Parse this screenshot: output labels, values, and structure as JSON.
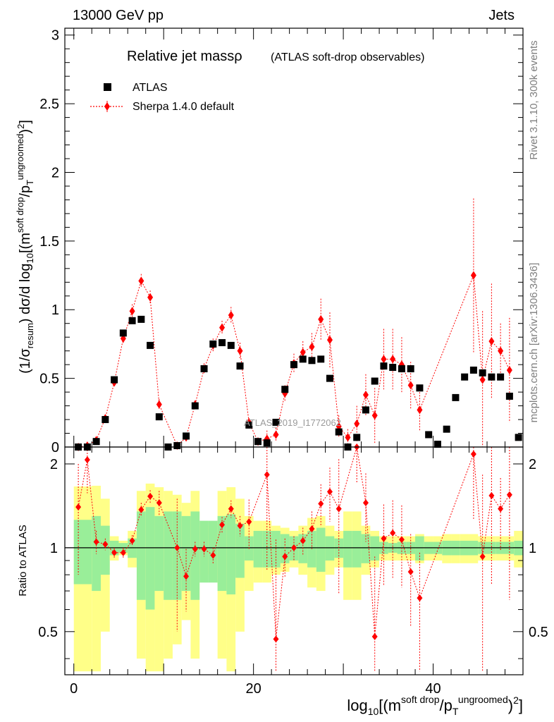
{
  "header": {
    "left": "13000 GeV pp",
    "right": "Jets"
  },
  "side_labels": {
    "rivet": "Rivet 3.1.10,  300k events",
    "mcplots": "mcplots.cern.ch [arXiv:1306.3436]"
  },
  "watermark": "ATLAS_2019_I1772062",
  "chart_data": [
    {
      "type": "scatter",
      "panel": "main",
      "title": "Relative jet massρ",
      "subtitle": "(ATLAS soft-drop observables)",
      "ylabel": "(1/σresum) dσ/d log10[(m soft drop / pT ungroomed)2]",
      "ylim": [
        0,
        3.05
      ],
      "xlim": [
        -1,
        50
      ],
      "yticks": [
        "0",
        "0.5",
        "1",
        "1.5",
        "2",
        "2.5",
        "3"
      ],
      "legend": {
        "position": "top-left",
        "entries": [
          "ATLAS",
          "Sherpa 1.4.0 default"
        ]
      },
      "colors": {
        "data": "#000000",
        "mc": "#ff0000"
      },
      "series": [
        {
          "name": "ATLAS",
          "x": [
            0.5,
            1.5,
            2.5,
            3.5,
            4.5,
            5.5,
            6.5,
            7.5,
            8.5,
            9.5,
            10.5,
            11.5,
            12.5,
            13.5,
            14.5,
            15.5,
            16.5,
            17.5,
            18.5,
            19.5,
            20.5,
            21.5,
            22.5,
            23.5,
            24.5,
            25.5,
            26.5,
            27.5,
            28.5,
            29.5,
            30.5,
            31.5,
            32.5,
            33.5,
            34.5,
            35.5,
            36.5,
            37.5,
            38.5,
            39.5,
            40.5,
            41.5,
            42.5,
            43.5,
            44.5,
            45.5,
            46.5,
            47.5,
            48.5,
            49.5
          ],
          "y": [
            0.0,
            0.0,
            0.04,
            0.2,
            0.49,
            0.83,
            0.92,
            0.93,
            0.74,
            0.22,
            0.0,
            0.01,
            0.08,
            0.3,
            0.57,
            0.75,
            0.76,
            0.74,
            0.59,
            0.16,
            0.04,
            0.03,
            0.18,
            0.42,
            0.6,
            0.64,
            0.63,
            0.64,
            0.5,
            0.11,
            0.0,
            0.07,
            0.27,
            0.48,
            0.59,
            0.58,
            0.57,
            0.57,
            0.43,
            0.09,
            0.02,
            0.13,
            0.36,
            0.51,
            0.56,
            0.54,
            0.51,
            0.51,
            0.37,
            0.07
          ]
        },
        {
          "name": "Sherpa 1.4.0 default",
          "x": [
            0.5,
            1.5,
            2.5,
            3.5,
            4.5,
            5.5,
            6.5,
            7.5,
            8.5,
            9.5,
            11.5,
            12.5,
            13.5,
            14.5,
            15.5,
            16.5,
            17.5,
            18.5,
            19.5,
            20.5,
            21.5,
            22.5,
            23.5,
            24.5,
            25.5,
            26.5,
            27.5,
            28.5,
            29.5,
            30.5,
            31.5,
            32.5,
            33.5,
            34.5,
            35.5,
            36.5,
            37.5,
            38.5,
            44.5,
            45.5,
            46.5,
            47.5,
            48.5
          ],
          "y": [
            0.0,
            0.01,
            0.05,
            0.21,
            0.47,
            0.79,
            0.99,
            1.21,
            1.09,
            0.31,
            0.01,
            0.07,
            0.31,
            0.57,
            0.74,
            0.87,
            0.96,
            0.7,
            0.18,
            0.04,
            0.06,
            0.09,
            0.39,
            0.61,
            0.69,
            0.73,
            0.93,
            0.78,
            0.15,
            0.07,
            0.17,
            0.38,
            0.23,
            0.64,
            0.64,
            0.6,
            0.45,
            0.27,
            1.25,
            0.49,
            0.77,
            0.7,
            0.56
          ],
          "yerr": [
            0.0,
            0.0,
            0.01,
            0.02,
            0.03,
            0.04,
            0.05,
            0.05,
            0.05,
            0.04,
            0.01,
            0.02,
            0.03,
            0.04,
            0.05,
            0.05,
            0.06,
            0.06,
            0.03,
            0.03,
            0.06,
            0.05,
            0.06,
            0.07,
            0.08,
            0.1,
            0.15,
            0.2,
            0.08,
            0.06,
            0.13,
            0.15,
            0.2,
            0.22,
            0.22,
            0.2,
            0.17,
            0.15,
            0.56,
            0.5,
            0.42,
            0.2,
            0.38
          ]
        }
      ]
    },
    {
      "type": "line",
      "panel": "ratio",
      "ylabel": "Ratio to ATLAS",
      "xlabel": "log10[(m soft drop / pT ungroomed)2]",
      "ylim": [
        0.35,
        2.3
      ],
      "xticks": [
        "0",
        "20",
        "40"
      ],
      "yticks": [
        "0.5",
        "1",
        "2"
      ],
      "reference": 1,
      "colors": {
        "band_stat": "#99ee99",
        "band_total": "#ffff88",
        "ratio": "#ff0000"
      },
      "band_stat_half": [
        0.26,
        0.26,
        0.3,
        0.2,
        0.06,
        0.04,
        0.08,
        0.35,
        0.4,
        0.3,
        0.35,
        0.35,
        0.3,
        0.35,
        0.25,
        0.25,
        0.3,
        0.32,
        0.22,
        0.1,
        0.15,
        0.15,
        0.15,
        0.12,
        0.1,
        0.12,
        0.15,
        0.18,
        0.1,
        0.08,
        0.15,
        0.15,
        0.12,
        0.1,
        0.05,
        0.04,
        0.05,
        0.05,
        0.1,
        0.05,
        0.05,
        0.06,
        0.06,
        0.06,
        0.06,
        0.05,
        0.05,
        0.05,
        0.05,
        0.06
      ],
      "band_total_half": [
        0.66,
        0.66,
        0.67,
        0.5,
        0.1,
        0.06,
        0.15,
        0.6,
        0.7,
        0.65,
        0.6,
        0.55,
        0.45,
        0.6,
        0.2,
        0.2,
        0.6,
        0.65,
        0.5,
        0.3,
        0.25,
        0.25,
        0.2,
        0.18,
        0.15,
        0.2,
        0.28,
        0.3,
        0.2,
        0.15,
        0.35,
        0.35,
        0.2,
        0.15,
        0.1,
        0.1,
        0.1,
        0.1,
        0.12,
        0.1,
        0.1,
        0.12,
        0.12,
        0.12,
        0.12,
        0.1,
        0.1,
        0.1,
        0.1,
        0.15
      ],
      "ratio_x": [
        0.5,
        1.5,
        2.5,
        3.5,
        4.5,
        5.5,
        6.5,
        7.5,
        8.5,
        9.5,
        11.5,
        12.5,
        13.5,
        14.5,
        15.5,
        16.5,
        17.5,
        18.5,
        19.5,
        21.5,
        22.5,
        23.5,
        24.5,
        25.5,
        26.5,
        27.5,
        28.5,
        29.5,
        31.5,
        32.5,
        33.5,
        34.5,
        35.5,
        36.5,
        37.5,
        38.5,
        44.5,
        45.5,
        46.5,
        47.5,
        48.5
      ],
      "ratio_y": [
        1.4,
        2.07,
        1.05,
        1.03,
        0.96,
        0.96,
        1.06,
        1.37,
        1.53,
        1.45,
        1.0,
        0.79,
        0.99,
        0.99,
        0.94,
        1.21,
        1.38,
        1.2,
        1.24,
        1.83,
        0.47,
        0.93,
        1.0,
        1.06,
        1.17,
        1.44,
        1.59,
        1.38,
        2.3,
        1.45,
        0.48,
        1.08,
        1.13,
        1.07,
        0.82,
        0.66,
        2.17,
        0.93,
        1.54,
        1.38,
        1.55
      ],
      "ratio_err": [
        0.6,
        0.5,
        0.1,
        0.05,
        0.04,
        0.04,
        0.05,
        0.08,
        0.08,
        0.15,
        0.5,
        0.2,
        0.06,
        0.06,
        0.06,
        0.08,
        0.1,
        0.1,
        0.25,
        1.0,
        0.6,
        0.15,
        0.1,
        0.12,
        0.18,
        0.25,
        0.35,
        0.7,
        0.6,
        0.4,
        0.45,
        0.35,
        0.35,
        0.35,
        0.3,
        0.3,
        0.9,
        0.9,
        0.8,
        0.4,
        0.9
      ]
    }
  ]
}
